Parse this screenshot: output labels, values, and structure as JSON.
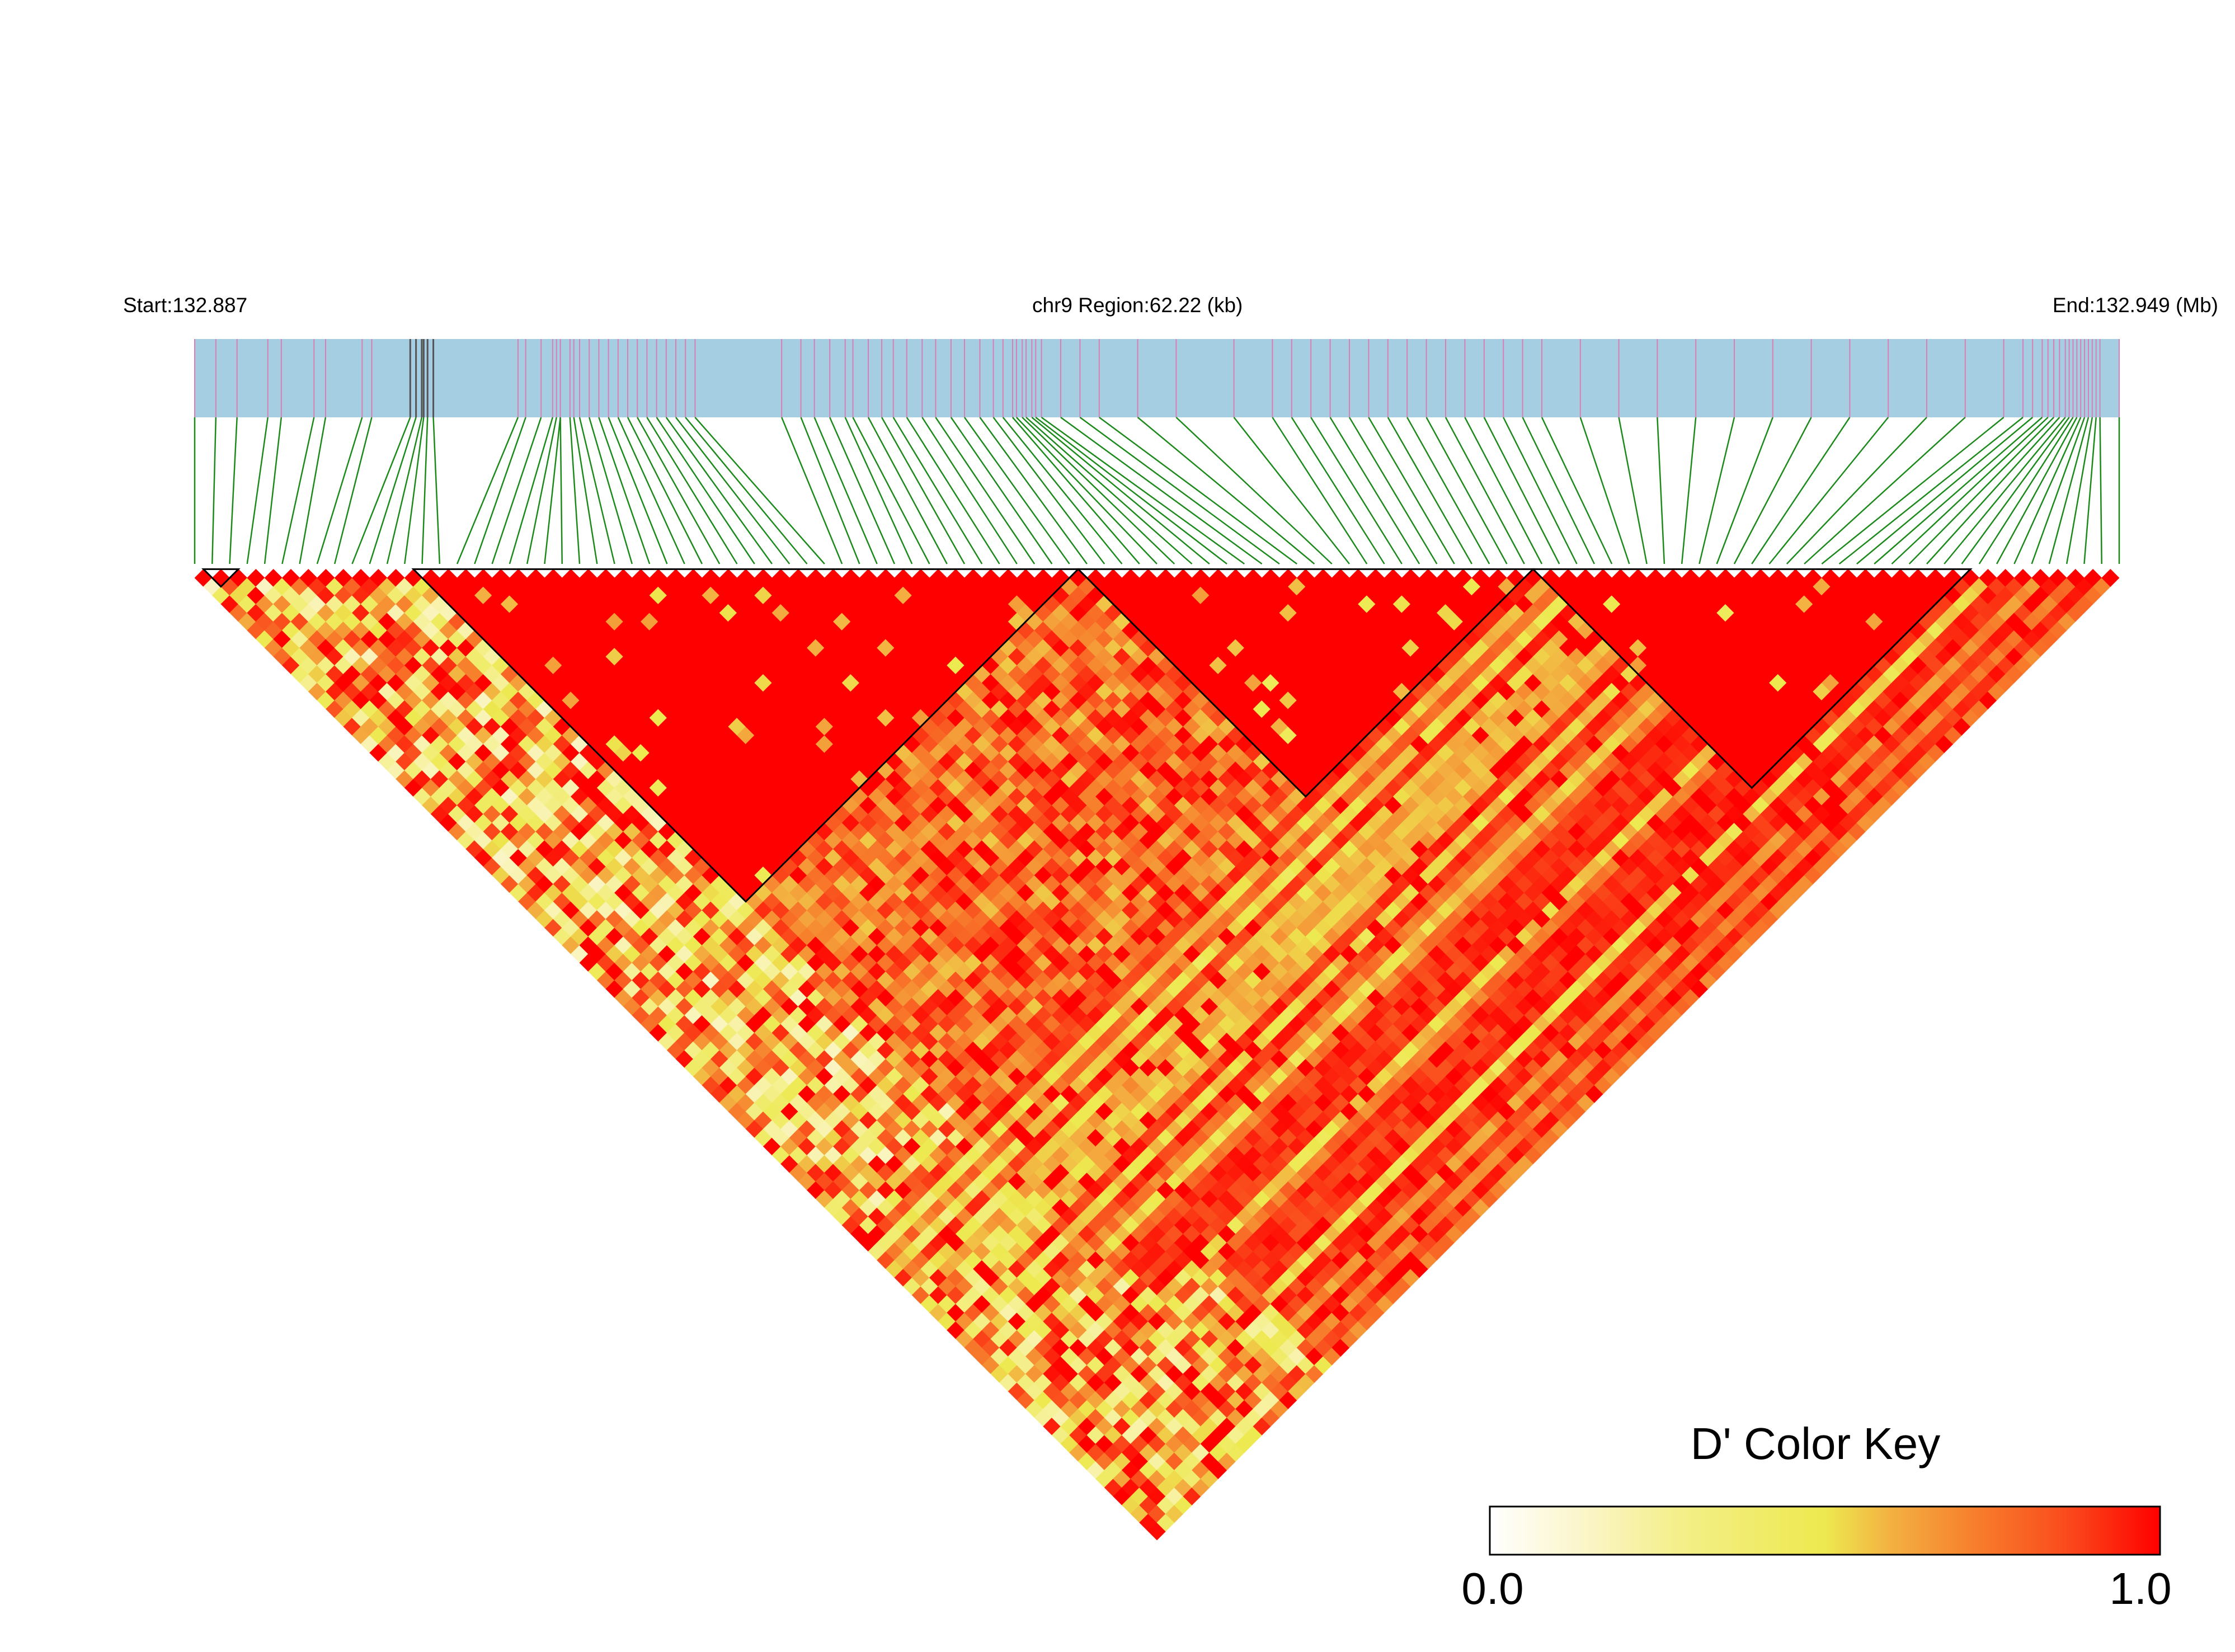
{
  "header": {
    "start_label": "Start:132.887",
    "region_label": "chr9 Region:62.22 (kb)",
    "end_label": "End:132.949 (Mb)"
  },
  "legend": {
    "title": "D' Color Key",
    "min_label": "0.0",
    "max_label": "1.0",
    "gradient_colors": [
      "#ffffff",
      "#fbf5c9",
      "#f4ef8a",
      "#ede94f",
      "#f3b041",
      "#f7802d",
      "#fa4b1c",
      "#ff0000"
    ]
  },
  "colors": {
    "track_fill": "#a6cee3",
    "snp_tick": "#d77fb4",
    "snp_tick_dark": "#555555",
    "connector": "#1b8a1b",
    "high_ld": "#ff0000",
    "block_outline": "#000000"
  },
  "chart_data": {
    "type": "heatmap",
    "description_type": "LD triangle (pairwise D')",
    "region": {
      "chromosome": "chr9",
      "start_mb": 132.887,
      "end_mb": 132.949,
      "length_kb": 62.22
    },
    "snp_count": 111,
    "snp_positions_fraction": [
      0.0,
      0.011,
      0.022,
      0.038,
      0.045,
      0.062,
      0.068,
      0.087,
      0.092,
      0.112,
      0.115,
      0.118,
      0.119,
      0.121,
      0.124,
      0.168,
      0.172,
      0.18,
      0.186,
      0.188,
      0.19,
      0.19,
      0.195,
      0.197,
      0.2,
      0.205,
      0.21,
      0.215,
      0.22,
      0.225,
      0.23,
      0.235,
      0.24,
      0.245,
      0.25,
      0.255,
      0.26,
      0.305,
      0.315,
      0.322,
      0.33,
      0.338,
      0.342,
      0.35,
      0.357,
      0.363,
      0.37,
      0.378,
      0.385,
      0.393,
      0.4,
      0.408,
      0.415,
      0.42,
      0.425,
      0.427,
      0.43,
      0.432,
      0.435,
      0.437,
      0.44,
      0.45,
      0.46,
      0.47,
      0.49,
      0.51,
      0.54,
      0.56,
      0.57,
      0.58,
      0.59,
      0.6,
      0.61,
      0.62,
      0.63,
      0.64,
      0.65,
      0.66,
      0.67,
      0.68,
      0.69,
      0.7,
      0.72,
      0.74,
      0.76,
      0.78,
      0.8,
      0.82,
      0.84,
      0.86,
      0.88,
      0.9,
      0.92,
      0.94,
      0.95,
      0.955,
      0.96,
      0.963,
      0.966,
      0.969,
      0.972,
      0.974,
      0.976,
      0.978,
      0.98,
      0.982,
      0.984,
      0.986,
      0.988,
      0.99,
      1.0
    ],
    "haplotype_blocks_snp_ranges": [
      [
        1,
        2
      ],
      [
        4,
        4
      ],
      [
        13,
        50
      ],
      [
        51,
        76
      ],
      [
        77,
        101
      ]
    ],
    "dprime_range": [
      0.0,
      1.0
    ]
  }
}
